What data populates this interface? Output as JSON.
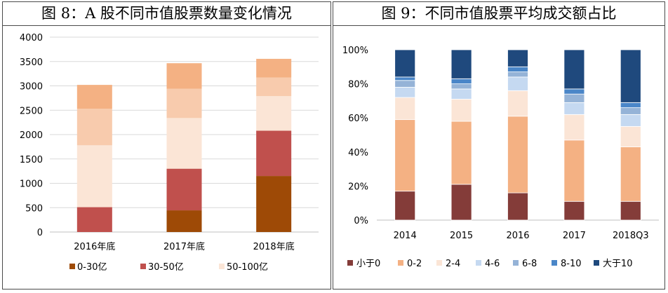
{
  "chart_data": [
    {
      "type": "bar",
      "stacked": true,
      "title": "图 8：A 股不同市值股票数量变化情况",
      "categories": [
        "2016年底",
        "2017年底",
        "2018年底"
      ],
      "ylim": [
        0,
        4000
      ],
      "yticks": [
        0,
        500,
        1000,
        1500,
        2000,
        2500,
        3000,
        3500,
        4000
      ],
      "grid": true,
      "legend_position": "bottom",
      "series": [
        {
          "name": "0-30亿",
          "color": "#9e4a06",
          "values": [
            0,
            445,
            1150
          ],
          "in_legend": true
        },
        {
          "name": "30-50亿",
          "color": "#c0504d",
          "values": [
            510,
            855,
            930
          ],
          "in_legend": true
        },
        {
          "name": "50-100亿",
          "color": "#fbe5d6",
          "values": [
            1270,
            1040,
            710
          ],
          "in_legend": true
        },
        {
          "name": "",
          "color": "#f8cbad",
          "values": [
            750,
            600,
            380
          ],
          "in_legend": false
        },
        {
          "name": "",
          "color": "#f4b183",
          "values": [
            490,
            525,
            385
          ],
          "in_legend": false
        }
      ]
    },
    {
      "type": "bar",
      "stacked": true,
      "title": "图 9：不同市值股票平均成交额占比",
      "categories": [
        "2014",
        "2015",
        "2016",
        "2017",
        "2018Q3"
      ],
      "ylim": [
        0,
        100
      ],
      "yticks": [
        "0%",
        "20%",
        "40%",
        "60%",
        "80%",
        "100%"
      ],
      "grid": false,
      "legend_position": "bottom",
      "series": [
        {
          "name": "小于0",
          "color": "#843c39",
          "values": [
            17,
            21,
            16,
            11,
            11
          ]
        },
        {
          "name": "0-2",
          "color": "#f4b183",
          "values": [
            42,
            37,
            45,
            36,
            32
          ]
        },
        {
          "name": "2-4",
          "color": "#fbe5d6",
          "values": [
            13,
            13,
            15,
            15,
            12
          ]
        },
        {
          "name": "4-6",
          "color": "#c5d9f1",
          "values": [
            6,
            6,
            8,
            7,
            7
          ]
        },
        {
          "name": "6-8",
          "color": "#95b3d7",
          "values": [
            4,
            3,
            3,
            5,
            4
          ]
        },
        {
          "name": "8-10",
          "color": "#4a86c8",
          "values": [
            2,
            3,
            3,
            3,
            3
          ]
        },
        {
          "name": "大于10",
          "color": "#1f497d",
          "values": [
            16,
            17,
            10,
            23,
            31
          ]
        }
      ]
    }
  ]
}
